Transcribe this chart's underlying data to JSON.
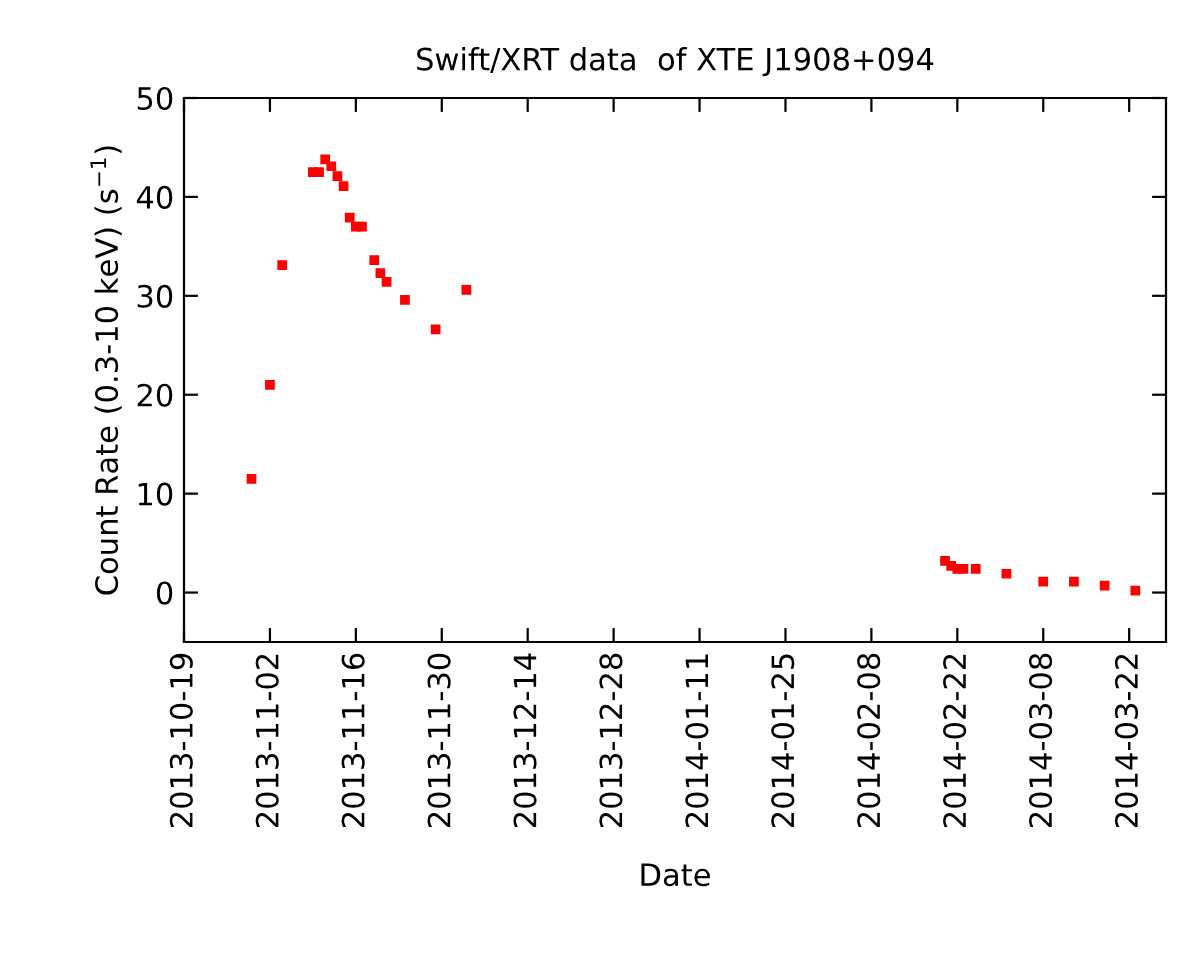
{
  "chart_data": {
    "type": "scatter",
    "title": "Swift/XRT data  of XTE J1908+094",
    "xlabel": "Date",
    "ylabel": "Count Rate (0.3-10 keV) (s$^{−1}$)",
    "x": [
      "2013-10-30",
      "2013-11-02",
      "2013-11-04",
      "2013-11-09",
      "2013-11-10",
      "2013-11-11",
      "2013-11-12",
      "2013-11-13",
      "2013-11-14",
      "2013-11-15",
      "2013-11-16",
      "2013-11-17",
      "2013-11-19",
      "2013-11-20",
      "2013-11-21",
      "2013-11-24",
      "2013-11-29",
      "2013-12-04",
      "2014-02-20",
      "2014-02-21",
      "2014-02-22",
      "2014-02-23",
      "2014-02-25",
      "2014-03-02",
      "2014-03-08",
      "2014-03-13",
      "2014-03-18",
      "2014-03-23"
    ],
    "series": [
      {
        "color": "#ff0000",
        "values": [
          11.5,
          21,
          33.1,
          42.5,
          42.5,
          43.8,
          43.1,
          42.1,
          41.1,
          37.9,
          37.0,
          37.0,
          33.6,
          32.3,
          31.4,
          29.6,
          26.6,
          30.6,
          3.2,
          2.7,
          2.4,
          2.4,
          2.4,
          1.9,
          1.1,
          1.1,
          0.7,
          0.2
        ]
      }
    ],
    "xlim": [
      "2013-10-19",
      "2014-03-28"
    ],
    "xticks": [
      "2013-10-19",
      "2013-11-02",
      "2013-11-16",
      "2013-11-30",
      "2013-12-14",
      "2013-12-28",
      "2014-01-11",
      "2014-01-25",
      "2014-02-08",
      "2014-02-22",
      "2014-03-08",
      "2014-03-22"
    ],
    "ylim": [
      -5,
      50
    ],
    "yticks": [
      0,
      10,
      20,
      30,
      40,
      50
    ],
    "marker": "square",
    "grid": false,
    "legend": false
  }
}
